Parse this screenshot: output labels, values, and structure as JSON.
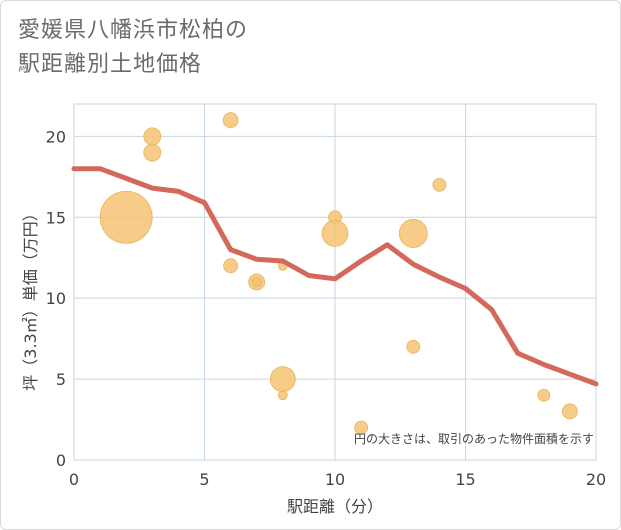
{
  "chart_data": {
    "type": "scatter+line",
    "title_line1": "愛媛県八幡浜市松柏の",
    "title_line2": "駅距離別土地価格",
    "xlabel": "駅距離（分）",
    "ylabel": "坪（3.3㎡）単価（万円）",
    "note": "円の大きさは、取引のあった物件面積を示す",
    "xlim": [
      0,
      20
    ],
    "ylim": [
      0,
      22
    ],
    "xticks": [
      "0",
      "5",
      "10",
      "15",
      "20"
    ],
    "yticks": [
      "0",
      "5",
      "10",
      "15",
      "20"
    ],
    "colors": {
      "line": "#d4685a",
      "bubble": "#f5c373",
      "bubble_stroke": "#e8b25c",
      "grid": "#c9d6e3"
    },
    "line": {
      "x": [
        0,
        1,
        2,
        3,
        4,
        5,
        6,
        7,
        8,
        9,
        10,
        11,
        12,
        13,
        14,
        15,
        16,
        17,
        18,
        19,
        20
      ],
      "y": [
        18.0,
        18.0,
        17.4,
        16.8,
        16.6,
        15.9,
        13.0,
        12.4,
        12.3,
        11.4,
        11.2,
        12.3,
        13.3,
        12.1,
        11.3,
        10.6,
        9.3,
        6.6,
        5.9,
        5.3,
        4.7
      ]
    },
    "bubbles": [
      {
        "x": 2,
        "y": 15,
        "size": 26
      },
      {
        "x": 3,
        "y": 20,
        "size": 8.5
      },
      {
        "x": 3,
        "y": 19,
        "size": 8.5
      },
      {
        "x": 6,
        "y": 21,
        "size": 7.5
      },
      {
        "x": 6,
        "y": 12,
        "size": 7
      },
      {
        "x": 7,
        "y": 11,
        "size": 8
      },
      {
        "x": 7,
        "y": 11,
        "size": 4.5
      },
      {
        "x": 8,
        "y": 12,
        "size": 4.5
      },
      {
        "x": 8,
        "y": 5,
        "size": 12.5
      },
      {
        "x": 8,
        "y": 4,
        "size": 4.5
      },
      {
        "x": 10,
        "y": 15,
        "size": 6.5
      },
      {
        "x": 10,
        "y": 14,
        "size": 13
      },
      {
        "x": 11,
        "y": 2,
        "size": 6.5
      },
      {
        "x": 13,
        "y": 14,
        "size": 14
      },
      {
        "x": 13,
        "y": 7,
        "size": 6.5
      },
      {
        "x": 14,
        "y": 17,
        "size": 6.5
      },
      {
        "x": 18,
        "y": 4,
        "size": 6
      },
      {
        "x": 19,
        "y": 3,
        "size": 7.5
      }
    ]
  }
}
